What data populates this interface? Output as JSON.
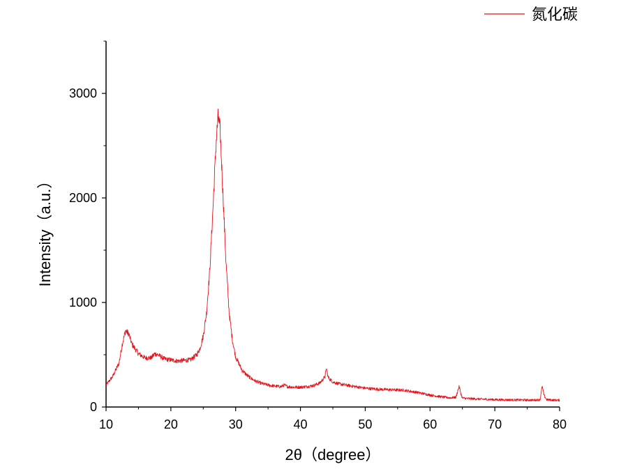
{
  "chart_data": {
    "type": "line",
    "title": "",
    "xlabel": "2θ（degree）",
    "ylabel": "Intensity（a.u.）",
    "xlim": [
      10,
      80
    ],
    "ylim": [
      0,
      3500
    ],
    "x_ticks": [
      10,
      20,
      30,
      40,
      50,
      60,
      70,
      80
    ],
    "y_ticks": [
      0,
      1000,
      2000,
      3000
    ],
    "x_tick_labels": [
      "10",
      "20",
      "30",
      "40",
      "50",
      "60",
      "70",
      "80"
    ],
    "y_tick_labels": [
      "0",
      "1000",
      "2000",
      "3000"
    ],
    "grid": false,
    "legend_position": "top-right",
    "series": [
      {
        "name": "氮化碳",
        "color": "#e8121a",
        "x": [
          10,
          11,
          12,
          12.5,
          13,
          13.5,
          14,
          15,
          16,
          17,
          17.5,
          18,
          18.5,
          19,
          20,
          21,
          22,
          23,
          24,
          24.5,
          25,
          25.5,
          26,
          26.5,
          27,
          27.3,
          27.6,
          28,
          28.5,
          29,
          29.5,
          30,
          31,
          32,
          33,
          34,
          35,
          36,
          37,
          37.5,
          38,
          39,
          40,
          41,
          42,
          43,
          43.8,
          44,
          44.3,
          45,
          46,
          48,
          50,
          52,
          54,
          56,
          57,
          58,
          60,
          62,
          63,
          64,
          64.3,
          64.5,
          64.8,
          65,
          66,
          68,
          70,
          72,
          74,
          76,
          77,
          77.3,
          77.6,
          78,
          79,
          80
        ],
        "y": [
          210,
          290,
          420,
          600,
          730,
          700,
          600,
          510,
          470,
          470,
          510,
          500,
          480,
          460,
          450,
          440,
          445,
          450,
          500,
          560,
          680,
          900,
          1300,
          1900,
          2550,
          2780,
          2650,
          2100,
          1400,
          900,
          640,
          480,
          350,
          290,
          250,
          225,
          210,
          200,
          195,
          210,
          195,
          190,
          190,
          195,
          205,
          230,
          290,
          370,
          280,
          240,
          220,
          200,
          180,
          170,
          165,
          160,
          150,
          140,
          115,
          95,
          88,
          92,
          160,
          195,
          120,
          85,
          80,
          75,
          70,
          68,
          67,
          66,
          70,
          200,
          110,
          70,
          66,
          65
        ]
      }
    ]
  }
}
